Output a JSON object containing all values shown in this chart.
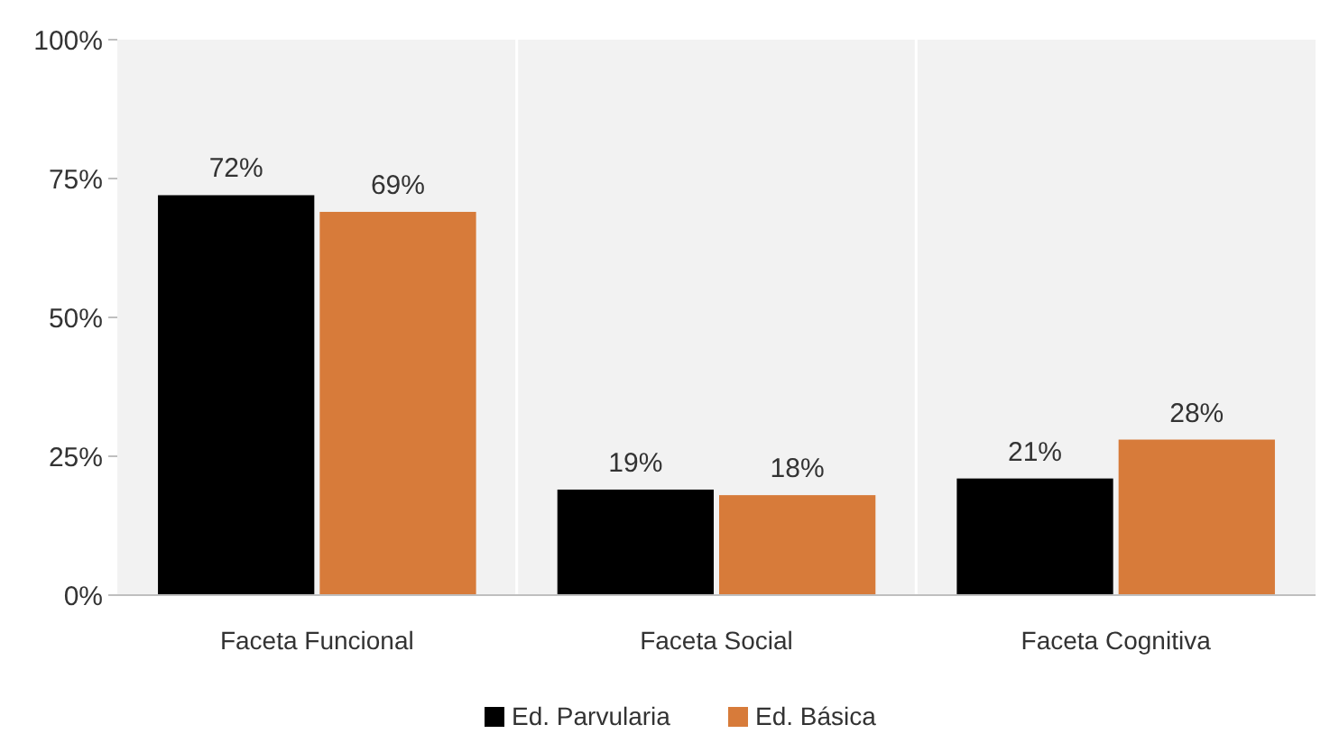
{
  "chart_data": {
    "type": "bar",
    "categories": [
      "Faceta Funcional",
      "Faceta Social",
      "Faceta Cognitiva"
    ],
    "series": [
      {
        "name": "Ed. Parvularia",
        "color": "#000000",
        "values": [
          72,
          19,
          21
        ]
      },
      {
        "name": "Ed. Básica",
        "color": "#d77b3a",
        "values": [
          69,
          18,
          28
        ]
      }
    ],
    "value_labels": [
      [
        "72%",
        "19%",
        "21%"
      ],
      [
        "69%",
        "18%",
        "28%"
      ]
    ],
    "ylim": [
      0,
      100
    ],
    "yticks": [
      {
        "value": 0,
        "label": "0%"
      },
      {
        "value": 25,
        "label": "25%"
      },
      {
        "value": 50,
        "label": "50%"
      },
      {
        "value": 75,
        "label": "75%"
      },
      {
        "value": 100,
        "label": "100%"
      }
    ],
    "legend": "bottom"
  }
}
